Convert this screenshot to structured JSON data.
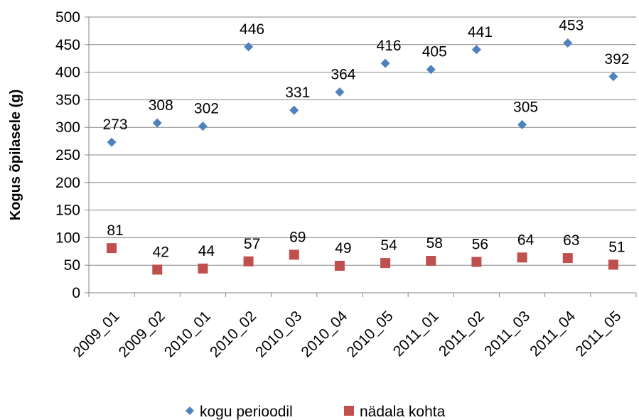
{
  "chart_data": {
    "type": "scatter",
    "categories": [
      "2009_01",
      "2009_02",
      "2010_01",
      "2010_02",
      "2010_03",
      "2010_04",
      "2010_05",
      "2011_01",
      "2011_02",
      "2011_03",
      "2011_04",
      "2011_05"
    ],
    "series": [
      {
        "name": "kogu perioodil",
        "marker": "diamond",
        "color": "#4F81BD",
        "values": [
          273,
          308,
          302,
          446,
          331,
          364,
          416,
          405,
          441,
          305,
          453,
          392
        ]
      },
      {
        "name": "nädala kohta",
        "marker": "square",
        "color": "#C0504D",
        "values": [
          81,
          42,
          44,
          57,
          69,
          49,
          54,
          58,
          56,
          64,
          63,
          51
        ]
      }
    ],
    "ylabel": "Kogus õpilasele (g)",
    "xlabel": "",
    "title": "",
    "ylim": [
      0,
      500
    ],
    "yticks": [
      0,
      50,
      100,
      150,
      200,
      250,
      300,
      350,
      400,
      450,
      500
    ],
    "grid": true,
    "legend_position": "bottom"
  }
}
